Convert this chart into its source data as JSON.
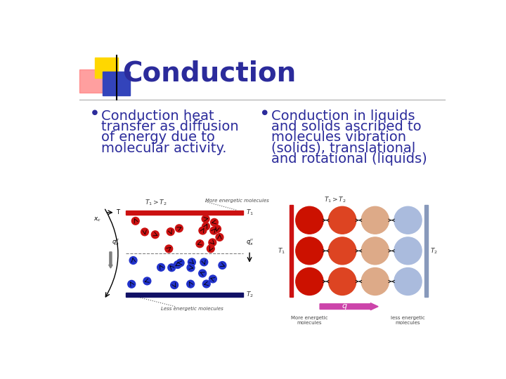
{
  "title": "Conduction",
  "title_color": "#2B2B9B",
  "title_fontsize": 28,
  "background_color": "#ffffff",
  "bullet1_lines": [
    "Conduction heat",
    "transfer as diffusion",
    "of energy due to",
    "molecular activity."
  ],
  "bullet2_lines": [
    "Conduction in liquids",
    "and solids ascribed to",
    "molecules vibration",
    "(solids), translational",
    "and rotational (liquids)"
  ],
  "bullet_color": "#2B2B9B",
  "bullet_fontsize": 14,
  "separator_line_color": "#aaaaaa",
  "corner_yellow": "#FFD700",
  "corner_red": "#FF7777",
  "corner_blue": "#3344BB",
  "mol_colors": [
    "#CC1111",
    "#DD3333",
    "#2233CC",
    "#1122BB"
  ],
  "mol2_colors": [
    [
      "#BB1100",
      "#CC2200",
      "#DD5511",
      "#EE8833"
    ],
    [
      "#BB1100",
      "#CC2200",
      "#DD5511",
      "#EE8833"
    ],
    [
      "#BB1100",
      "#CC2200",
      "#DD5511",
      "#EE8833"
    ]
  ],
  "mol2_colors_cold": [
    [
      "#9999DD",
      "#AAAAEE",
      "#BBBBFF",
      "#9999CC"
    ],
    [
      "#9999DD",
      "#AAAAEE",
      "#BBBBFF",
      "#9999CC"
    ],
    [
      "#9999DD",
      "#AAAAEE",
      "#BBBBFF",
      "#9999CC"
    ]
  ]
}
